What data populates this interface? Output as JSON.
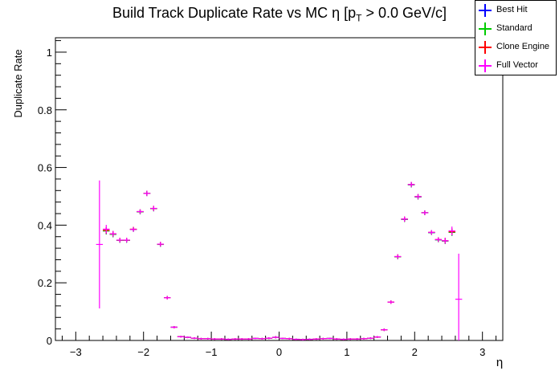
{
  "chart_data": {
    "type": "scatter",
    "title": "Build Track Duplicate Rate vs MC η [p_T > 0.0 GeV/c]",
    "title_parts": {
      "before": "Build Track Duplicate Rate vs MC η [p",
      "sub": "T",
      "after": " > 0.0 GeV/c]"
    },
    "xlabel": "η",
    "ylabel": "Duplicate Rate",
    "xlim": [
      -3.3,
      3.3
    ],
    "ylim": [
      0,
      1.05
    ],
    "xticks": [
      -3,
      -2,
      -1,
      0,
      1,
      2,
      3
    ],
    "xtick_labels": [
      "−3",
      "−2",
      "−1",
      "0",
      "1",
      "2",
      "3"
    ],
    "yticks": [
      0,
      0.2,
      0.4,
      0.6,
      0.8,
      1
    ],
    "ytick_labels": [
      "0",
      "0.2",
      "0.4",
      "0.6",
      "0.8",
      "1"
    ],
    "bin_half_width": 0.05,
    "legend_position": "top-right",
    "series": [
      {
        "name": "Best Hit",
        "color": "#0000ff",
        "x": [
          -2.55,
          -2.45,
          -2.35,
          -2.25,
          -2.15,
          -2.05,
          -1.95,
          -1.85,
          -1.75,
          -1.65,
          -1.55,
          -1.45,
          -1.35,
          -1.25,
          -1.15,
          -1.05,
          -0.95,
          -0.85,
          -0.75,
          -0.65,
          -0.55,
          -0.45,
          -0.35,
          -0.25,
          -0.15,
          -0.05,
          0.05,
          0.15,
          0.25,
          0.35,
          0.45,
          0.55,
          0.65,
          0.75,
          0.85,
          0.95,
          1.05,
          1.15,
          1.25,
          1.35,
          1.45,
          1.55,
          1.65,
          1.75,
          1.85,
          1.95,
          2.05,
          2.15,
          2.25,
          2.35,
          2.45,
          2.55
        ],
        "y": [
          0.38,
          0.368,
          0.347,
          0.347,
          0.385,
          0.446,
          0.51,
          0.457,
          0.333,
          0.148,
          0.046,
          0.013,
          0.011,
          0.008,
          0.006,
          0.006,
          0.005,
          0.005,
          0.004,
          0.005,
          0.005,
          0.005,
          0.007,
          0.006,
          0.008,
          0.011,
          0.007,
          0.006,
          0.004,
          0.003,
          0.004,
          0.005,
          0.006,
          0.007,
          0.005,
          0.004,
          0.005,
          0.005,
          0.006,
          0.008,
          0.012,
          0.037,
          0.133,
          0.29,
          0.42,
          0.54,
          0.498,
          0.443,
          0.374,
          0.349,
          0.345,
          0.375
        ],
        "err": [
          0.012,
          0.01,
          0.008,
          0.008,
          0.008,
          0.008,
          0.009,
          0.009,
          0.008,
          0.006,
          0.004,
          0.002,
          0.002,
          0.002,
          0.002,
          0.002,
          0.002,
          0.002,
          0.002,
          0.002,
          0.002,
          0.002,
          0.002,
          0.002,
          0.003,
          0.004,
          0.002,
          0.002,
          0.002,
          0.002,
          0.002,
          0.002,
          0.002,
          0.002,
          0.002,
          0.002,
          0.002,
          0.002,
          0.002,
          0.002,
          0.003,
          0.004,
          0.006,
          0.008,
          0.009,
          0.009,
          0.009,
          0.008,
          0.008,
          0.008,
          0.01,
          0.012
        ]
      },
      {
        "name": "Standard",
        "color": "#00cc00",
        "x": [
          -2.55,
          -2.45,
          -2.35,
          -2.25,
          -2.15,
          -2.05,
          -1.95,
          -1.85,
          -1.75,
          -1.65,
          -1.55,
          -1.45,
          -1.35,
          -1.25,
          -1.15,
          -1.05,
          -0.95,
          -0.85,
          -0.75,
          -0.65,
          -0.55,
          -0.45,
          -0.35,
          -0.25,
          -0.15,
          -0.05,
          0.05,
          0.15,
          0.25,
          0.35,
          0.45,
          0.55,
          0.65,
          0.75,
          0.85,
          0.95,
          1.05,
          1.15,
          1.25,
          1.35,
          1.45,
          1.55,
          1.65,
          1.75,
          1.85,
          1.95,
          2.05,
          2.15,
          2.25,
          2.35,
          2.45,
          2.55
        ],
        "y": [
          0.38,
          0.368,
          0.347,
          0.347,
          0.385,
          0.446,
          0.51,
          0.457,
          0.333,
          0.148,
          0.046,
          0.013,
          0.011,
          0.008,
          0.006,
          0.006,
          0.005,
          0.005,
          0.004,
          0.005,
          0.005,
          0.005,
          0.007,
          0.006,
          0.008,
          0.011,
          0.007,
          0.006,
          0.004,
          0.003,
          0.004,
          0.005,
          0.006,
          0.007,
          0.005,
          0.004,
          0.005,
          0.005,
          0.006,
          0.008,
          0.012,
          0.037,
          0.133,
          0.29,
          0.42,
          0.54,
          0.498,
          0.443,
          0.374,
          0.349,
          0.345,
          0.375
        ],
        "err": [
          0.012,
          0.01,
          0.008,
          0.008,
          0.008,
          0.008,
          0.009,
          0.009,
          0.008,
          0.006,
          0.004,
          0.002,
          0.002,
          0.002,
          0.002,
          0.002,
          0.002,
          0.002,
          0.002,
          0.002,
          0.002,
          0.002,
          0.002,
          0.002,
          0.003,
          0.004,
          0.002,
          0.002,
          0.002,
          0.002,
          0.002,
          0.002,
          0.002,
          0.002,
          0.002,
          0.002,
          0.002,
          0.002,
          0.002,
          0.002,
          0.003,
          0.004,
          0.006,
          0.008,
          0.009,
          0.009,
          0.009,
          0.008,
          0.008,
          0.008,
          0.01,
          0.012
        ]
      },
      {
        "name": "Clone Engine",
        "color": "#ff0000",
        "x": [
          -2.55,
          -2.45,
          -2.35,
          -2.25,
          -2.15,
          -2.05,
          -1.95,
          -1.85,
          -1.75,
          -1.65,
          -1.55,
          -1.45,
          -1.35,
          -1.25,
          -1.15,
          -1.05,
          -0.95,
          -0.85,
          -0.75,
          -0.65,
          -0.55,
          -0.45,
          -0.35,
          -0.25,
          -0.15,
          -0.05,
          0.05,
          0.15,
          0.25,
          0.35,
          0.45,
          0.55,
          0.65,
          0.75,
          0.85,
          0.95,
          1.05,
          1.15,
          1.25,
          1.35,
          1.45,
          1.55,
          1.65,
          1.75,
          1.85,
          1.95,
          2.05,
          2.15,
          2.25,
          2.35,
          2.45,
          2.55
        ],
        "y": [
          0.382,
          0.37,
          0.348,
          0.348,
          0.386,
          0.447,
          0.51,
          0.458,
          0.334,
          0.148,
          0.046,
          0.013,
          0.011,
          0.008,
          0.006,
          0.006,
          0.005,
          0.005,
          0.004,
          0.005,
          0.005,
          0.005,
          0.007,
          0.006,
          0.008,
          0.011,
          0.007,
          0.006,
          0.004,
          0.003,
          0.004,
          0.005,
          0.006,
          0.007,
          0.005,
          0.004,
          0.005,
          0.005,
          0.006,
          0.008,
          0.012,
          0.037,
          0.133,
          0.291,
          0.421,
          0.541,
          0.499,
          0.443,
          0.375,
          0.35,
          0.346,
          0.377
        ],
        "err": [
          0.012,
          0.01,
          0.008,
          0.008,
          0.008,
          0.008,
          0.009,
          0.009,
          0.008,
          0.006,
          0.004,
          0.002,
          0.002,
          0.002,
          0.002,
          0.002,
          0.002,
          0.002,
          0.002,
          0.002,
          0.002,
          0.002,
          0.002,
          0.002,
          0.003,
          0.004,
          0.002,
          0.002,
          0.002,
          0.002,
          0.002,
          0.002,
          0.002,
          0.002,
          0.002,
          0.002,
          0.002,
          0.002,
          0.002,
          0.002,
          0.003,
          0.004,
          0.006,
          0.008,
          0.009,
          0.009,
          0.009,
          0.008,
          0.008,
          0.008,
          0.01,
          0.012
        ]
      },
      {
        "name": "Full Vector",
        "color": "#ff00ff",
        "x": [
          -2.65,
          -2.55,
          -2.45,
          -2.35,
          -2.25,
          -2.15,
          -2.05,
          -1.95,
          -1.85,
          -1.75,
          -1.65,
          -1.55,
          -1.45,
          -1.35,
          -1.25,
          -1.15,
          -1.05,
          -0.95,
          -0.85,
          -0.75,
          -0.65,
          -0.55,
          -0.45,
          -0.35,
          -0.25,
          -0.15,
          -0.05,
          0.05,
          0.15,
          0.25,
          0.35,
          0.45,
          0.55,
          0.65,
          0.75,
          0.85,
          0.95,
          1.05,
          1.15,
          1.25,
          1.35,
          1.45,
          1.55,
          1.65,
          1.75,
          1.85,
          1.95,
          2.05,
          2.15,
          2.25,
          2.35,
          2.45,
          2.55,
          2.65
        ],
        "y": [
          0.333,
          0.386,
          0.37,
          0.348,
          0.348,
          0.385,
          0.447,
          0.51,
          0.458,
          0.334,
          0.148,
          0.046,
          0.013,
          0.011,
          0.008,
          0.006,
          0.006,
          0.005,
          0.005,
          0.004,
          0.005,
          0.005,
          0.005,
          0.007,
          0.006,
          0.008,
          0.011,
          0.007,
          0.006,
          0.004,
          0.003,
          0.004,
          0.005,
          0.006,
          0.007,
          0.005,
          0.004,
          0.005,
          0.005,
          0.006,
          0.008,
          0.012,
          0.037,
          0.133,
          0.291,
          0.421,
          0.541,
          0.499,
          0.443,
          0.375,
          0.35,
          0.346,
          0.38,
          0.143
        ],
        "err": [
          0.222,
          0.015,
          0.01,
          0.008,
          0.008,
          0.008,
          0.008,
          0.009,
          0.009,
          0.008,
          0.006,
          0.004,
          0.002,
          0.002,
          0.002,
          0.002,
          0.002,
          0.002,
          0.002,
          0.002,
          0.002,
          0.002,
          0.002,
          0.002,
          0.002,
          0.003,
          0.004,
          0.002,
          0.002,
          0.002,
          0.002,
          0.002,
          0.002,
          0.002,
          0.002,
          0.002,
          0.002,
          0.002,
          0.002,
          0.002,
          0.002,
          0.003,
          0.004,
          0.006,
          0.008,
          0.009,
          0.009,
          0.009,
          0.008,
          0.008,
          0.008,
          0.01,
          0.015,
          0.158
        ]
      }
    ]
  }
}
